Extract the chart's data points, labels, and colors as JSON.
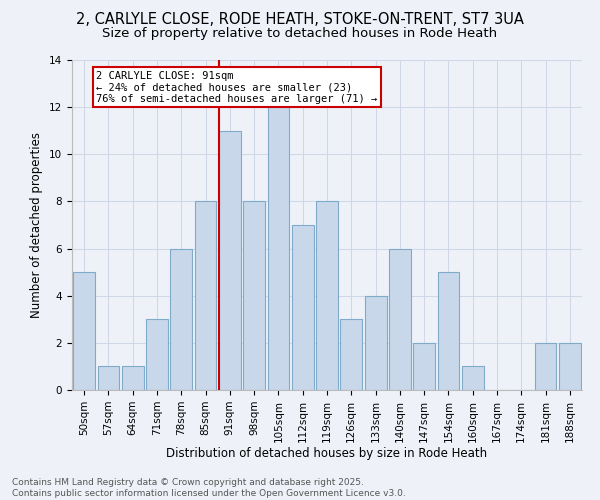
{
  "title1": "2, CARLYLE CLOSE, RODE HEATH, STOKE-ON-TRENT, ST7 3UA",
  "title2": "Size of property relative to detached houses in Rode Heath",
  "xlabel": "Distribution of detached houses by size in Rode Heath",
  "ylabel": "Number of detached properties",
  "categories": [
    "50sqm",
    "57sqm",
    "64sqm",
    "71sqm",
    "78sqm",
    "85sqm",
    "91sqm",
    "98sqm",
    "105sqm",
    "112sqm",
    "119sqm",
    "126sqm",
    "133sqm",
    "140sqm",
    "147sqm",
    "154sqm",
    "160sqm",
    "167sqm",
    "174sqm",
    "181sqm",
    "188sqm"
  ],
  "values": [
    5,
    1,
    1,
    3,
    6,
    8,
    11,
    8,
    12,
    7,
    8,
    3,
    4,
    6,
    2,
    5,
    1,
    0,
    0,
    2,
    2
  ],
  "bar_color": "#c8d8ea",
  "bar_edge_color": "#7faac9",
  "vline_index": 6,
  "vline_color": "#cc0000",
  "annotation_text": "2 CARLYLE CLOSE: 91sqm\n← 24% of detached houses are smaller (23)\n76% of semi-detached houses are larger (71) →",
  "annotation_box_color": "#ffffff",
  "annotation_box_edge_color": "#cc0000",
  "ylim": [
    0,
    14
  ],
  "yticks": [
    0,
    2,
    4,
    6,
    8,
    10,
    12,
    14
  ],
  "grid_color": "#d0d8e8",
  "background_color": "#eef2f8",
  "footer": "Contains HM Land Registry data © Crown copyright and database right 2025.\nContains public sector information licensed under the Open Government Licence v3.0.",
  "title_fontsize": 10.5,
  "subtitle_fontsize": 9.5,
  "axis_label_fontsize": 8.5,
  "tick_fontsize": 7.5,
  "footer_fontsize": 6.5
}
